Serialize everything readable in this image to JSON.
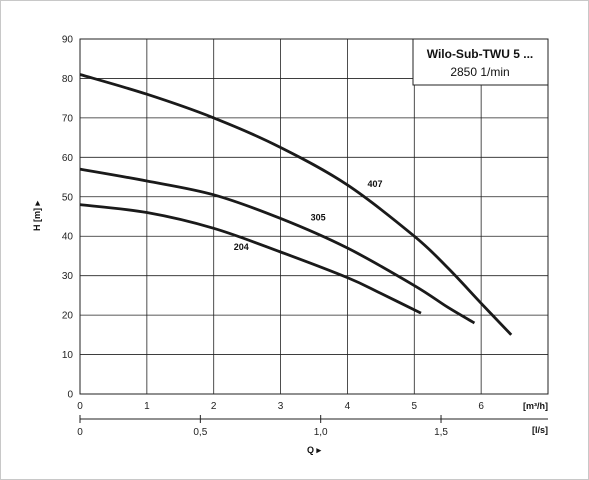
{
  "chart_data": {
    "type": "line",
    "legend": {
      "title": "Wilo-Sub-TWU 5 ...",
      "subtitle": "2850 1/min"
    },
    "ylabel": "H [m] ▸",
    "xlabel": "Q ▸",
    "x_unit": "[m³/h]",
    "x2_unit": "[l/s]",
    "xlim": [
      0,
      7
    ],
    "ylim": [
      0,
      90
    ],
    "x_ticks": [
      "0",
      "1",
      "2",
      "3",
      "4",
      "5",
      "6"
    ],
    "x2_ticks": [
      "0",
      "0,5",
      "1,0",
      "1,5"
    ],
    "x2_tick_values": [
      0,
      0.5,
      1.0,
      1.5
    ],
    "y_ticks": [
      "0",
      "10",
      "20",
      "30",
      "40",
      "50",
      "60",
      "70",
      "80",
      "90"
    ],
    "grid": true,
    "series": [
      {
        "name": "407",
        "x": [
          0,
          1,
          2,
          3,
          4,
          5,
          5.5,
          6,
          6.45
        ],
        "y": [
          81,
          76,
          70,
          62.5,
          53,
          40,
          32,
          23,
          15
        ]
      },
      {
        "name": "305",
        "x": [
          0,
          1,
          2,
          3,
          4,
          5,
          5.5,
          5.9
        ],
        "y": [
          57,
          54,
          50.5,
          44.5,
          37,
          27.5,
          22,
          18
        ]
      },
      {
        "name": "204",
        "x": [
          0,
          1,
          2,
          3,
          4,
          4.5,
          5.1
        ],
        "y": [
          48,
          46,
          42,
          36,
          29.5,
          25.5,
          20.5
        ]
      }
    ],
    "label_positions": [
      {
        "series": "407",
        "x": 4.3,
        "y": 52.5
      },
      {
        "series": "305",
        "x": 3.45,
        "y": 44
      },
      {
        "series": "204",
        "x": 2.3,
        "y": 36.5
      }
    ]
  }
}
